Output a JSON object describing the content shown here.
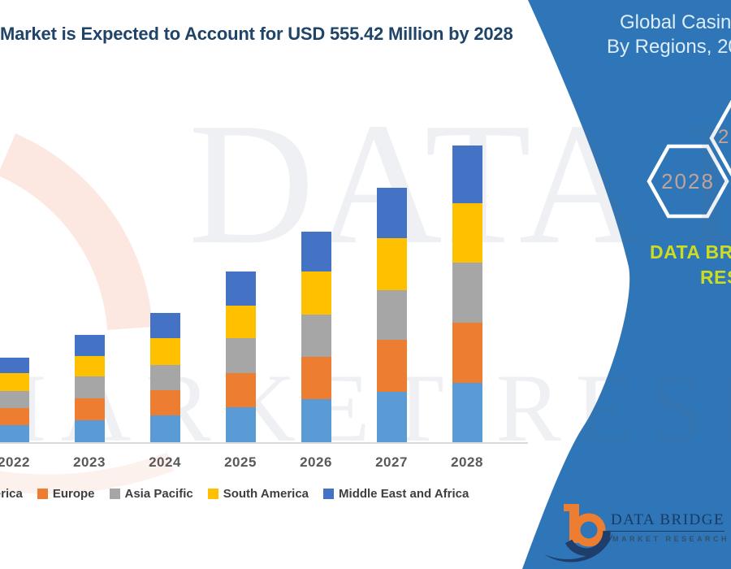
{
  "page": {
    "title": "Market is Expected to Account for USD 555.42 Million by 2028",
    "heading": {
      "line1": "Global Casino",
      "line2": "By Regions, 20"
    },
    "hexagons": {
      "hex1_label": "2028",
      "hex2_label": "2"
    },
    "brand_side": {
      "line1": "DATA BRIDGE",
      "line2": "RESEARCH"
    },
    "watermark": {
      "line1": "DATA BRIDGE",
      "line2": "MARKET RESEARCH"
    },
    "logo": {
      "name": "DATA BRIDGE",
      "tagline": "MARKET RESEARCH"
    },
    "colors": {
      "band_blue": "#2E76B8",
      "title_navy": "#1F4468",
      "brand_green": "#CDDC1E",
      "hexagon_text": "#C1A39A",
      "axis_label_gray": "#595959",
      "logo_orange": "#ED7D31",
      "logo_navy": "#1F3E6B"
    }
  },
  "chart_data": {
    "type": "bar",
    "subtype": "stacked-vertical",
    "title": "Market is Expected to Account for USD 555.42 Million by 2028",
    "unit": "USD Million",
    "categories": [
      "2022",
      "2023",
      "2024",
      "2025",
      "2026",
      "2027",
      "2028"
    ],
    "series": [
      {
        "name": "North America",
        "color": "#5B9BD5",
        "values": [
          33,
          42,
          52,
          67,
          82,
          96,
          112.42
        ]
      },
      {
        "name": "Europe",
        "color": "#ED7D31",
        "values": [
          32,
          42,
          46,
          64,
          79,
          97,
          112
        ]
      },
      {
        "name": "Asia Pacific",
        "color": "#A6A6A6",
        "values": [
          32,
          41,
          47,
          65,
          79,
          93,
          112
        ]
      },
      {
        "name": "South America",
        "color": "#FFC000",
        "values": [
          33,
          37,
          51,
          61,
          80,
          97,
          111
        ]
      },
      {
        "name": "Middle East and Africa",
        "color": "#4472C4",
        "values": [
          30,
          40,
          47,
          63,
          74,
          94,
          108
        ]
      }
    ],
    "totals": [
      160,
      202,
      243,
      320,
      394,
      477,
      555.42
    ],
    "ylim": [
      0,
      580
    ],
    "y_axis_visible": false,
    "gridlines": false,
    "legend_position": "bottom"
  }
}
